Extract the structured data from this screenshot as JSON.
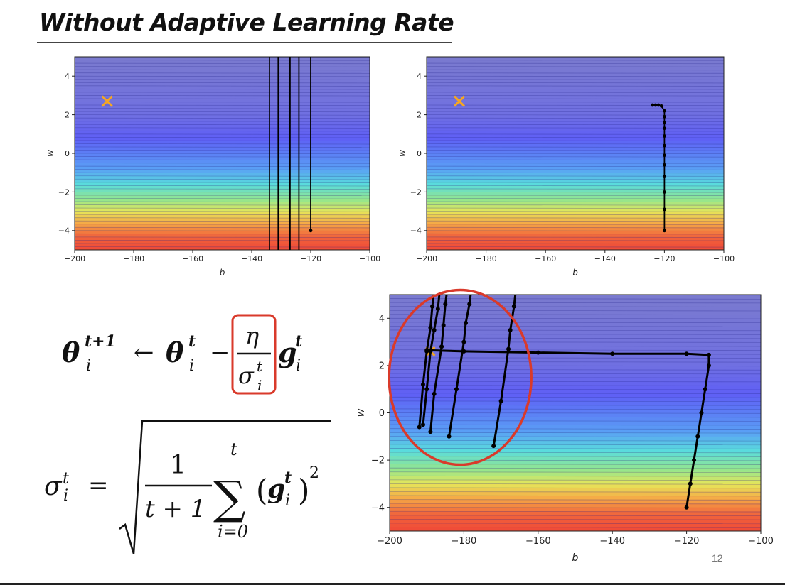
{
  "title": "Without Adaptive Learning Rate",
  "page_number": "12",
  "colors": {
    "minimum_marker": "#f5a623",
    "trajectory": "#000000",
    "highlight": "#d93a2b",
    "contour_top": "#7a7ad0",
    "contour_bottom": "#f04a38"
  },
  "formula_update": {
    "theta": "θ",
    "sub_i": "i",
    "sup_t1": "t+1",
    "sup_t": "t",
    "arrow": "←",
    "minus": "−",
    "eta": "η",
    "sigma": "σ",
    "g": "g"
  },
  "formula_sigma": {
    "sigma": "σ",
    "sub_i": "i",
    "sup_t": "t",
    "equals": "=",
    "one": "1",
    "denominator": "t + 1",
    "sum": "∑",
    "sum_top": "t",
    "sum_bottom": "i=0",
    "g": "g",
    "square": "2",
    "lparen": "(",
    "rparen": ")"
  },
  "chart_data": [
    {
      "type": "line",
      "name": "top-left",
      "xlabel": "b",
      "ylabel": "w",
      "xlim": [
        -200,
        -100
      ],
      "ylim": [
        -5,
        5
      ],
      "xticks": [
        -200,
        -180,
        -160,
        -140,
        -120,
        -100
      ],
      "yticks": [
        4,
        2,
        0,
        -2,
        -4
      ],
      "xtick_labels": [
        "−200",
        "−180",
        "−160",
        "−140",
        "−120",
        "−100"
      ],
      "ytick_labels": [
        "4",
        "2",
        "0",
        "−2",
        "−4"
      ],
      "minimum": [
        -189,
        2.7
      ],
      "series": [
        {
          "x": [
            -120,
            -120,
            -124,
            -124,
            -127,
            -127,
            -131,
            -131,
            -134,
            -134
          ],
          "y": [
            -4,
            5.6,
            5.6,
            -5.6,
            -5.6,
            5.6,
            5.6,
            -5.6,
            -5.6,
            5.6
          ],
          "markers": [
            [
              -120,
              -4
            ]
          ]
        }
      ]
    },
    {
      "type": "line",
      "name": "top-right",
      "xlabel": "b",
      "ylabel": "w",
      "xlim": [
        -200,
        -100
      ],
      "ylim": [
        -5,
        5
      ],
      "xticks": [
        -200,
        -180,
        -160,
        -140,
        -120,
        -100
      ],
      "yticks": [
        4,
        2,
        0,
        -2,
        -4
      ],
      "xtick_labels": [
        "−200",
        "−180",
        "−160",
        "−140",
        "−120",
        "−100"
      ],
      "ytick_labels": [
        "4",
        "2",
        "0",
        "−2",
        "−4"
      ],
      "minimum": [
        -189,
        2.7
      ],
      "series": [
        {
          "x": [
            -120,
            -120,
            -120,
            -120,
            -120,
            -120,
            -120,
            -120,
            -120,
            -120,
            -120,
            -120,
            -121,
            -122,
            -123,
            -124
          ],
          "y": [
            -4,
            -2.9,
            -2.0,
            -1.2,
            -0.6,
            -0.1,
            0.4,
            0.9,
            1.3,
            1.6,
            1.9,
            2.2,
            2.45,
            2.5,
            2.5,
            2.5
          ],
          "markers": "all"
        }
      ]
    },
    {
      "type": "line",
      "name": "bottom",
      "xlabel": "b",
      "ylabel": "w",
      "xlim": [
        -200,
        -100
      ],
      "ylim": [
        -5,
        5
      ],
      "xticks": [
        -200,
        -180,
        -160,
        -140,
        -120,
        -100
      ],
      "yticks": [
        4,
        2,
        0,
        -2,
        -4
      ],
      "xtick_labels": [
        "−200",
        "−180",
        "−160",
        "−140",
        "−120",
        "−100"
      ],
      "ytick_labels": [
        "4",
        "2",
        "0",
        "−2",
        "−4"
      ],
      "minimum": [
        -189,
        2.6
      ],
      "series": [
        {
          "x": [
            -120,
            -119,
            -118,
            -117,
            -116,
            -115,
            -114,
            -114,
            -120,
            -140,
            -160,
            -180,
            -190
          ],
          "y": [
            -4,
            -3,
            -2,
            -1,
            0,
            1,
            2,
            2.45,
            2.5,
            2.5,
            2.55,
            2.6,
            2.65
          ]
        },
        {
          "x": [
            -172,
            -170,
            -168,
            -167.5,
            -166.5,
            -166
          ],
          "y": [
            -1.4,
            0.5,
            2.7,
            3.5,
            4.5,
            5.2
          ]
        },
        {
          "x": [
            -184,
            -182,
            -180,
            -179.5,
            -178.5,
            -178
          ],
          "y": [
            -1,
            1,
            3,
            3.8,
            4.6,
            5.2
          ]
        },
        {
          "x": [
            -189,
            -188,
            -186,
            -185.5,
            -185,
            -184.5
          ],
          "y": [
            -0.8,
            0.8,
            2.8,
            3.7,
            4.6,
            5.2
          ]
        },
        {
          "x": [
            -191,
            -190,
            -189,
            -188,
            -187,
            -186.5
          ],
          "y": [
            -0.5,
            1,
            2.6,
            3.5,
            4.4,
            5.2
          ]
        },
        {
          "x": [
            -192,
            -191,
            -190,
            -189,
            -188.5,
            -188
          ],
          "y": [
            -0.6,
            1.2,
            2.6,
            3.6,
            4.5,
            5.2
          ]
        }
      ]
    }
  ]
}
